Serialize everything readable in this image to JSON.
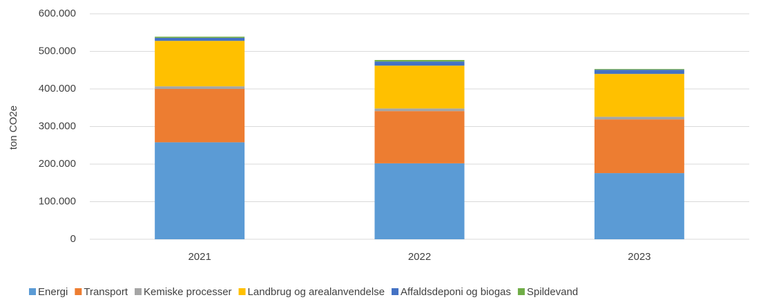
{
  "chart_data": {
    "type": "stacked_bar",
    "y_label": "ton CO2e",
    "categories": [
      "2021",
      "2022",
      "2023"
    ],
    "series": [
      {
        "name": "Energi",
        "color": "#5b9bd5",
        "values": [
          258000,
          202000,
          176000
        ]
      },
      {
        "name": "Transport",
        "color": "#ed7d31",
        "values": [
          142000,
          139000,
          143000
        ]
      },
      {
        "name": "Kemiske processer",
        "color": "#a5a5a5",
        "values": [
          7000,
          7000,
          7000
        ]
      },
      {
        "name": "Landbrug og arealanvendelse",
        "color": "#ffc000",
        "values": [
          121000,
          114000,
          114000
        ]
      },
      {
        "name": "Affaldsdeponi og biogas",
        "color": "#4472c4",
        "values": [
          8000,
          11000,
          11000
        ]
      },
      {
        "name": "Spildevand",
        "color": "#70ad47",
        "values": [
          3000,
          4000,
          2000
        ]
      }
    ],
    "ylim": [
      0,
      600000
    ],
    "yticks": [
      0,
      {
        "value": 100000,
        "label": "100.000"
      },
      {
        "value": 200000,
        "label": "200.000"
      },
      {
        "value": 300000,
        "label": "300.000"
      },
      {
        "value": 400000,
        "label": "400.000"
      },
      {
        "value": 500000,
        "label": "500.000"
      },
      {
        "value": 600000,
        "label": "600.000"
      }
    ],
    "grid": true,
    "legend": "bottom"
  }
}
